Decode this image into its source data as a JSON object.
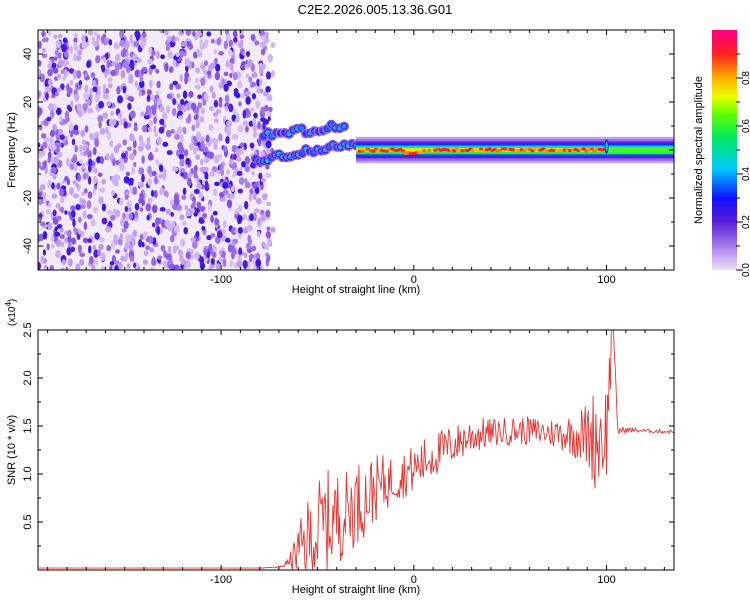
{
  "title": "C2E2.2026.005.13.36.G01",
  "chart_data": [
    {
      "type": "heatmap",
      "xlabel": "Height of straight line (km)",
      "ylabel": "Frequency (Hz)",
      "xlim": [
        -195,
        135
      ],
      "ylim": [
        -50,
        50
      ],
      "xticks": [
        -100,
        0,
        100
      ],
      "xtick_labels": [
        "-100",
        "0",
        "100"
      ],
      "yticks": [
        -40,
        -20,
        0,
        20,
        40
      ],
      "ytick_labels": [
        "-40",
        "-20",
        "0",
        "20",
        "40"
      ],
      "colorbar": {
        "label": "Normalized spectral amplitude",
        "range": [
          0.0,
          1.0
        ],
        "ticks": [
          0.0,
          0.2,
          0.4,
          0.6,
          0.8
        ],
        "tick_labels": [
          "0.0",
          "0.2",
          "0.4",
          "0.6",
          "0.8"
        ]
      },
      "regions": [
        {
          "name": "noise",
          "x_range": [
            -195,
            -76
          ],
          "freq_range": [
            -50,
            50
          ],
          "amplitude": 0.1
        },
        {
          "name": "onset",
          "x_range": [
            -83,
            -30
          ],
          "freq_range": [
            -10,
            12
          ],
          "amplitude": 0.35
        },
        {
          "name": "stable carrier",
          "x_range": [
            -30,
            135
          ],
          "freq": 0,
          "amplitude": 0.9
        }
      ]
    },
    {
      "type": "line",
      "xlabel": "Height of straight line (km)",
      "ylabel": "SNR (10 * v/v)",
      "y_multiplier": "(x10",
      "y_multiplier_exp": "4",
      "y_multiplier_close": ")",
      "xlim": [
        -195,
        135
      ],
      "ylim": [
        0,
        2.5
      ],
      "xticks": [
        -100,
        0,
        100
      ],
      "xtick_labels": [
        "-100",
        "0",
        "100"
      ],
      "yticks": [
        0.5,
        1.0,
        1.5,
        2.0,
        2.5
      ],
      "ytick_labels": [
        "0.5",
        "1.0",
        "1.5",
        "2.0",
        "2.5"
      ],
      "color": "#e8332f",
      "series": [
        {
          "name": "SNR",
          "x": [
            -195,
            -150,
            -100,
            -80,
            -70,
            -65,
            -60,
            -55,
            -50,
            -45,
            -40,
            -35,
            -30,
            -25,
            -20,
            -15,
            -10,
            -5,
            0,
            10,
            20,
            30,
            40,
            50,
            60,
            70,
            80,
            90,
            95,
            100,
            103,
            106,
            110,
            120,
            135
          ],
          "y": [
            0.02,
            0.02,
            0.02,
            0.02,
            0.03,
            0.08,
            0.2,
            0.3,
            0.4,
            0.5,
            0.55,
            0.6,
            0.7,
            0.75,
            0.85,
            0.9,
            0.95,
            1.0,
            1.05,
            1.2,
            1.3,
            1.4,
            1.43,
            1.45,
            1.45,
            1.43,
            1.42,
            1.4,
            1.38,
            1.45,
            2.45,
            1.45,
            1.46,
            1.45,
            1.44
          ],
          "band": [
            0,
            0,
            0,
            0,
            0.01,
            0.05,
            0.25,
            0.45,
            0.55,
            0.55,
            0.5,
            0.45,
            0.45,
            0.4,
            0.35,
            0.3,
            0.25,
            0.25,
            0.25,
            0.25,
            0.2,
            0.2,
            0.15,
            0.15,
            0.15,
            0.15,
            0.2,
            0.35,
            0.6,
            0.5,
            0.3,
            0.05,
            0.03,
            0.02,
            0.02
          ]
        }
      ]
    }
  ]
}
